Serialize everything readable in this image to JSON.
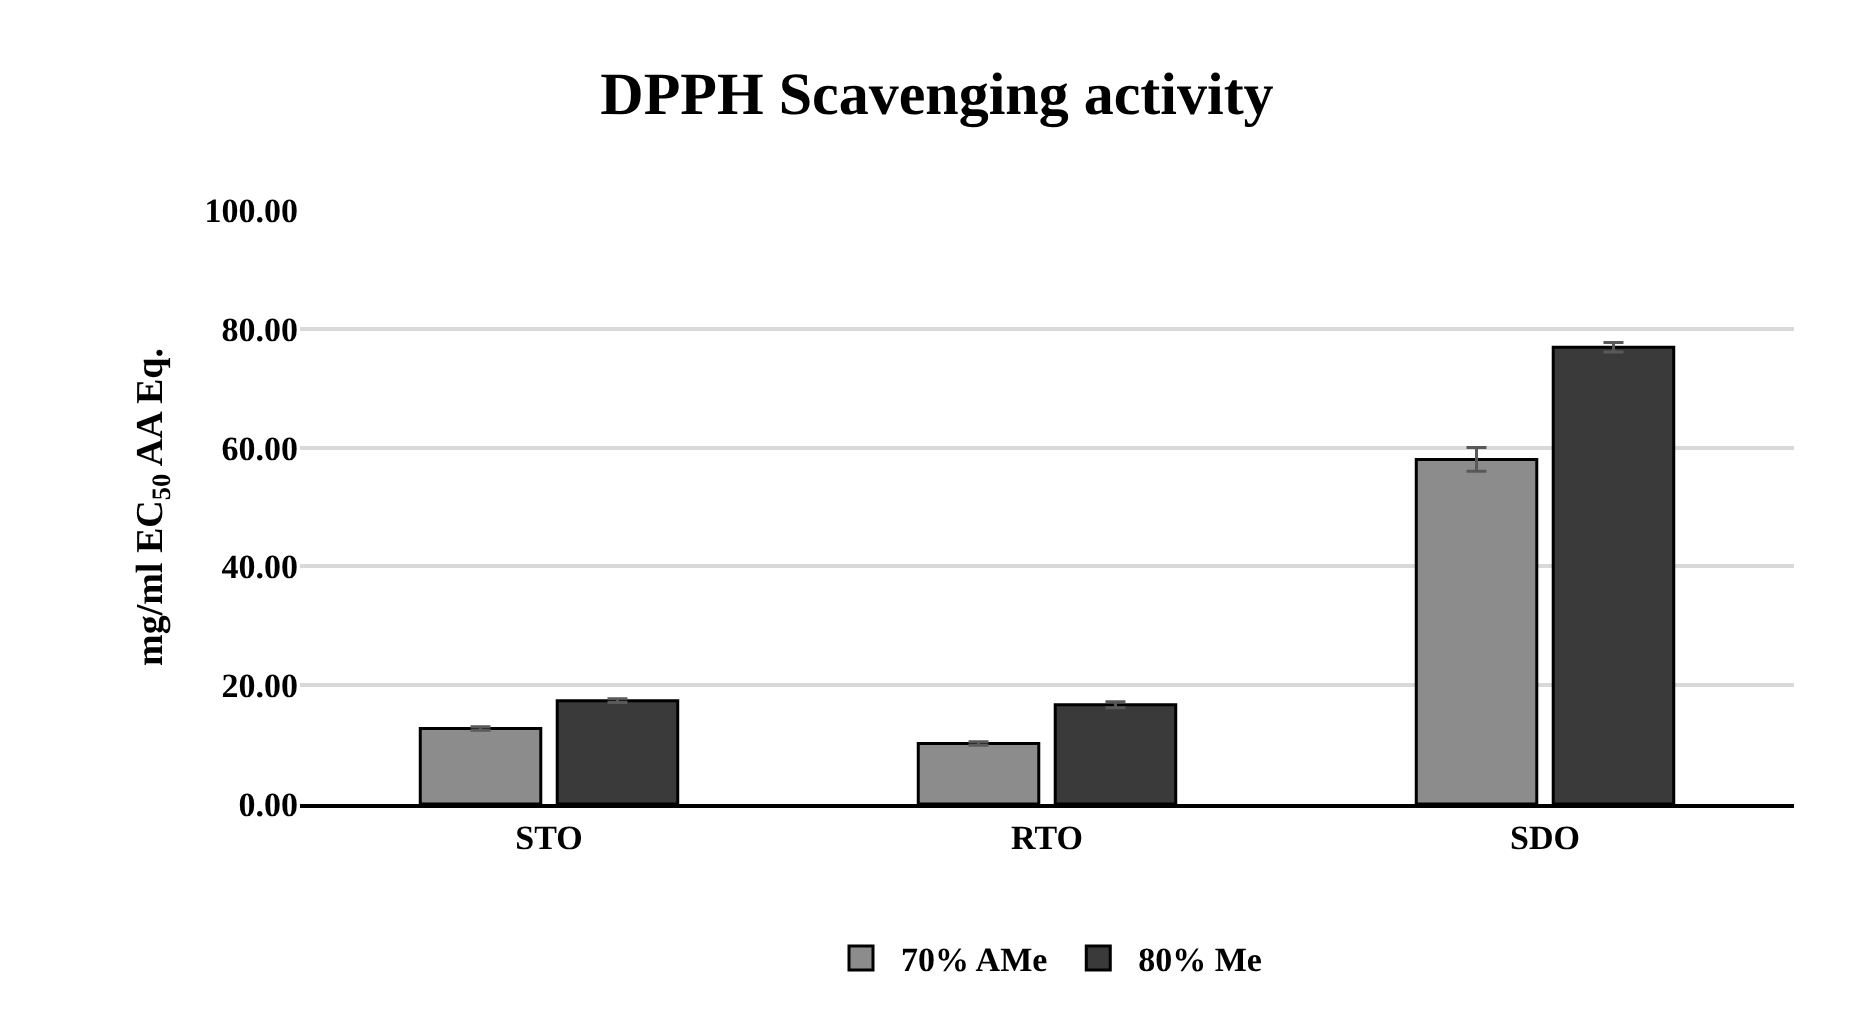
{
  "chart_data": {
    "type": "bar",
    "title": "DPPH Scavenging activity",
    "ylabel": "mg/ml EC$_{50}$ AA Eq.",
    "categories": [
      "STO",
      "RTO",
      "SDO"
    ],
    "series": [
      {
        "name": "70% AMe",
        "color": "#8c8c8c",
        "values": [
          12.7,
          10.2,
          58.0
        ],
        "errors": [
          0.3,
          0.3,
          2.0
        ]
      },
      {
        "name": "80% Me",
        "color": "#3a3a3a",
        "values": [
          17.4,
          16.7,
          76.9
        ],
        "errors": [
          0.3,
          0.5,
          0.8
        ]
      }
    ],
    "ylim": [
      0,
      100
    ],
    "yticks": [
      {
        "value": 0,
        "label": "0.00"
      },
      {
        "value": 20,
        "label": "20.00"
      },
      {
        "value": 40,
        "label": "40.00"
      },
      {
        "value": 60,
        "label": "60.00"
      },
      {
        "value": 80,
        "label": "80.00"
      },
      {
        "value": 100,
        "label": "100.00"
      }
    ],
    "grid": "y",
    "legend": "bottom"
  }
}
